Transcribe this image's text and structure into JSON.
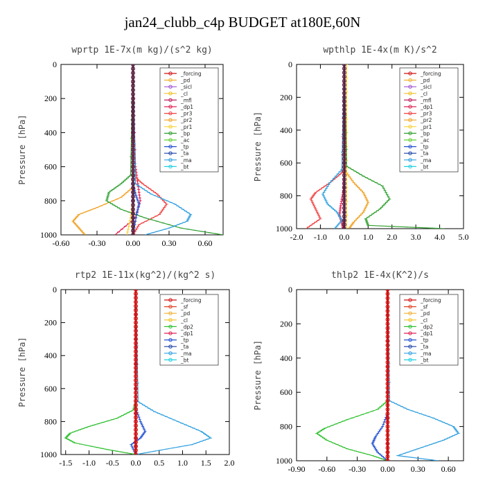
{
  "title": "jan24_clubb_c4p  BUDGET at180E,60N",
  "colors": {
    "forcing": "#d11111",
    "sf": "#e04020",
    "pd": "#f0b030",
    "sicl": "#a050d0",
    "cl": "#f0c020",
    "mfl": "#c02060",
    "dp1": "#e02050",
    "dp2": "#30c030",
    "pr3": "#f04040",
    "pr2": "#f0a020",
    "pr1": "#f8d030",
    "bp": "#30a030",
    "ac": "#60d030",
    "tp": "#2050d0",
    "ta": "#1a3fa8",
    "ma": "#30a0e0",
    "bt": "#20d0e0"
  },
  "chart_data": [
    {
      "type": "line",
      "title": "wprtp   1E-7x(m kg)/(s^2 kg)",
      "ylabel": "Pressure [hPa]",
      "ylim": [
        1000,
        0
      ],
      "xlim": [
        -0.6,
        0.75
      ],
      "xticks": [
        "-0.60",
        "-0.30",
        "0.00",
        "0.30",
        "0.60"
      ],
      "xtick_values": [
        -0.6,
        -0.3,
        0.0,
        0.3,
        0.6
      ],
      "yticks": [
        "0",
        "200",
        "400",
        "600",
        "800",
        "1000"
      ],
      "legend": [
        "_forcing",
        "_pd",
        "_sicl",
        "_cl",
        "_mfl",
        "_dp1",
        "_pr3",
        "_pr2",
        "_pr1",
        "_bp",
        "_ac",
        "_tp",
        "_ta",
        "_ma",
        "_bt"
      ],
      "series": [
        {
          "name": "_forcing",
          "color": "forcing",
          "x": [
            0,
            0
          ],
          "y": [
            0,
            1000
          ]
        },
        {
          "name": "_pd",
          "color": "pd",
          "x": [
            0,
            0
          ],
          "y": [
            0,
            1000
          ]
        },
        {
          "name": "_sicl",
          "color": "sicl",
          "x": [
            0,
            0
          ],
          "y": [
            0,
            1000
          ]
        },
        {
          "name": "_cl",
          "color": "cl",
          "x": [
            0,
            0
          ],
          "y": [
            0,
            1000
          ]
        },
        {
          "name": "_mfl",
          "color": "mfl",
          "x": [
            0,
            0
          ],
          "y": [
            0,
            1000
          ]
        },
        {
          "name": "_dp1",
          "color": "dp1",
          "x": [
            0,
            0.02,
            0.04,
            0.06,
            0.02,
            -0.15
          ],
          "y": [
            0,
            600,
            700,
            800,
            900,
            1000
          ]
        },
        {
          "name": "_pr3",
          "color": "pr3",
          "x": [
            0,
            0.0,
            0.08,
            0.2,
            0.28,
            0.22,
            0.05,
            0.0
          ],
          "y": [
            0,
            650,
            700,
            760,
            820,
            880,
            940,
            1000
          ]
        },
        {
          "name": "_pr2",
          "color": "pr2",
          "x": [
            0,
            0.0,
            -0.1,
            -0.3,
            -0.45,
            -0.5,
            -0.45,
            -0.4
          ],
          "y": [
            0,
            720,
            780,
            840,
            880,
            920,
            960,
            1000
          ]
        },
        {
          "name": "_pr1",
          "color": "pr1",
          "x": [
            0,
            0,
            -0.02,
            -0.05
          ],
          "y": [
            0,
            800,
            900,
            1000
          ]
        },
        {
          "name": "_bp",
          "color": "bp",
          "x": [
            0,
            -0.02,
            -0.1,
            -0.2,
            -0.22,
            -0.1,
            0.1,
            0.4,
            0.75
          ],
          "y": [
            0,
            650,
            700,
            750,
            800,
            850,
            900,
            960,
            1000
          ]
        },
        {
          "name": "_ac",
          "color": "ac",
          "x": [
            0,
            0,
            0.0
          ],
          "y": [
            0,
            900,
            1000
          ]
        },
        {
          "name": "_tp",
          "color": "tp",
          "x": [
            0,
            0.0,
            0.02,
            0.05,
            0.03,
            0.0
          ],
          "y": [
            0,
            700,
            760,
            820,
            880,
            1000
          ]
        },
        {
          "name": "_ta",
          "color": "ta",
          "x": [
            0,
            0,
            0.0
          ],
          "y": [
            0,
            800,
            1000
          ]
        },
        {
          "name": "_ma",
          "color": "ma",
          "x": [
            0,
            0.02,
            0.15,
            0.35,
            0.48,
            0.45,
            0.3,
            0.1
          ],
          "y": [
            0,
            700,
            760,
            820,
            880,
            920,
            960,
            1000
          ]
        },
        {
          "name": "_bt",
          "color": "bt",
          "x": [
            0,
            0
          ],
          "y": [
            0,
            1000
          ]
        }
      ]
    },
    {
      "type": "line",
      "title": "wpthlp   1E-4x(m K)/s^2",
      "ylabel": "Pressure [hPa]",
      "ylim": [
        1000,
        0
      ],
      "xlim": [
        -2.0,
        5.0
      ],
      "xticks": [
        "-2.0",
        "-1.0",
        "0.0",
        "1.0",
        "2.0",
        "3.0",
        "4.0",
        "5.0"
      ],
      "xtick_values": [
        -2,
        -1,
        0,
        1,
        2,
        3,
        4,
        5
      ],
      "yticks": [
        "0",
        "200",
        "400",
        "600",
        "800",
        "1000"
      ],
      "legend": [
        "_forcing",
        "_pd",
        "_sicl",
        "_cl",
        "_mfl",
        "_dp1",
        "_pr3",
        "_pr2",
        "_pr1",
        "_bp",
        "_ac",
        "_tp",
        "_ta",
        "_ma",
        "_bt"
      ],
      "series": [
        {
          "name": "_forcing",
          "color": "forcing",
          "x": [
            0,
            0
          ],
          "y": [
            0,
            1000
          ]
        },
        {
          "name": "_pd",
          "color": "pd",
          "x": [
            0,
            0
          ],
          "y": [
            0,
            1000
          ]
        },
        {
          "name": "_sicl",
          "color": "sicl",
          "x": [
            0,
            0
          ],
          "y": [
            0,
            1000
          ]
        },
        {
          "name": "_cl",
          "color": "cl",
          "x": [
            0,
            0
          ],
          "y": [
            0,
            1000
          ]
        },
        {
          "name": "_mfl",
          "color": "mfl",
          "x": [
            0,
            0
          ],
          "y": [
            0,
            1000
          ]
        },
        {
          "name": "_dp1",
          "color": "dp1",
          "x": [
            0,
            0,
            -0.05,
            -0.15,
            -0.2,
            -0.1,
            -0.05
          ],
          "y": [
            0,
            700,
            780,
            860,
            920,
            960,
            1000
          ]
        },
        {
          "name": "_pr3",
          "color": "pr3",
          "x": [
            0,
            -0.1,
            -0.6,
            -1.2,
            -1.4,
            -1.2,
            -1.0,
            -1.6
          ],
          "y": [
            0,
            660,
            720,
            780,
            820,
            880,
            940,
            1000
          ]
        },
        {
          "name": "_pr2",
          "color": "pr2",
          "x": [
            0,
            0.05,
            0.4,
            0.8,
            1.0,
            0.8,
            0.4,
            0.2
          ],
          "y": [
            0,
            650,
            720,
            780,
            840,
            900,
            960,
            1000
          ]
        },
        {
          "name": "_pr1",
          "color": "pr1",
          "x": [
            0.1,
            0.1,
            0.1
          ],
          "y": [
            0,
            500,
            1000
          ]
        },
        {
          "name": "_bp",
          "color": "bp",
          "x": [
            0,
            0.1,
            0.8,
            1.6,
            1.9,
            1.5,
            0.9,
            1.0,
            4.2
          ],
          "y": [
            0,
            620,
            680,
            740,
            820,
            880,
            940,
            980,
            1000
          ]
        },
        {
          "name": "_ac",
          "color": "ac",
          "x": [
            0,
            0,
            0.0
          ],
          "y": [
            0,
            900,
            1000
          ]
        },
        {
          "name": "_tp",
          "color": "tp",
          "x": [
            0,
            0,
            0.0
          ],
          "y": [
            0,
            900,
            1000
          ]
        },
        {
          "name": "_ta",
          "color": "ta",
          "x": [
            0,
            0,
            0.0
          ],
          "y": [
            0,
            900,
            1000
          ]
        },
        {
          "name": "_ma",
          "color": "ma",
          "x": [
            0,
            -0.1,
            -0.6,
            -0.9,
            -0.7,
            -0.3,
            -0.1,
            -0.4
          ],
          "y": [
            0,
            640,
            720,
            790,
            850,
            900,
            950,
            1000
          ]
        },
        {
          "name": "_bt",
          "color": "bt",
          "x": [
            0,
            0
          ],
          "y": [
            0,
            1000
          ]
        }
      ]
    },
    {
      "type": "line",
      "title": "rtp2   1E-11x(kg^2)/(kg^2 s)",
      "ylabel": "Pressure [hPa]",
      "ylim": [
        1000,
        0
      ],
      "xlim": [
        -1.6,
        2.0
      ],
      "xticks": [
        "-1.5",
        "-1.0",
        "-0.5",
        "0.0",
        "0.5",
        "1.0",
        "1.5",
        "2.0"
      ],
      "xtick_values": [
        -1.5,
        -1.0,
        -0.5,
        0.0,
        0.5,
        1.0,
        1.5,
        2.0
      ],
      "yticks": [
        "0",
        "200",
        "400",
        "600",
        "800",
        "1000"
      ],
      "legend": [
        "_forcing",
        "_sf",
        "_pd",
        "_cl",
        "_dp2",
        "_dp1",
        "_tp",
        "_ta",
        "_ma",
        "_bt"
      ],
      "series": [
        {
          "name": "_forcing",
          "color": "forcing",
          "x": [
            0,
            0
          ],
          "y": [
            0,
            1000
          ]
        },
        {
          "name": "_sf",
          "color": "sf",
          "x": [
            0,
            0
          ],
          "y": [
            0,
            1000
          ]
        },
        {
          "name": "_pd",
          "color": "pd",
          "x": [
            0,
            0
          ],
          "y": [
            0,
            1000
          ]
        },
        {
          "name": "_cl",
          "color": "cl",
          "x": [
            0,
            0
          ],
          "y": [
            0,
            1000
          ]
        },
        {
          "name": "_dp2",
          "color": "dp2",
          "x": [
            0,
            0,
            -0.05,
            -0.4,
            -1.0,
            -1.4,
            -1.5,
            -1.3,
            -0.6,
            0.0
          ],
          "y": [
            0,
            680,
            730,
            780,
            830,
            870,
            900,
            930,
            970,
            1000
          ]
        },
        {
          "name": "_dp1",
          "color": "dp1",
          "x": [
            0,
            0,
            0.0
          ],
          "y": [
            0,
            900,
            1000
          ]
        },
        {
          "name": "_tp",
          "color": "tp",
          "x": [
            0,
            0,
            0.1,
            0.2,
            0.1,
            -0.1,
            0.0
          ],
          "y": [
            0,
            720,
            800,
            860,
            900,
            940,
            1000
          ]
        },
        {
          "name": "_ta",
          "color": "ta",
          "x": [
            0,
            0,
            0.0
          ],
          "y": [
            0,
            900,
            1000
          ]
        },
        {
          "name": "_ma",
          "color": "ma",
          "x": [
            0,
            0.05,
            0.4,
            0.9,
            1.4,
            1.6,
            1.2,
            0.4,
            0.0
          ],
          "y": [
            0,
            680,
            740,
            800,
            860,
            900,
            940,
            980,
            1000
          ]
        },
        {
          "name": "_bt",
          "color": "bt",
          "x": [
            0,
            0
          ],
          "y": [
            0,
            1000
          ]
        }
      ]
    },
    {
      "type": "line",
      "title": "thlp2   1E-4x(K^2)/s",
      "ylabel": "Pressure [hPa]",
      "ylim": [
        1000,
        0
      ],
      "xlim": [
        -0.9,
        0.75
      ],
      "xticks": [
        "-0.90",
        "-0.60",
        "-0.30",
        "0.00",
        "0.30",
        "0.60"
      ],
      "xtick_values": [
        -0.9,
        -0.6,
        -0.3,
        0.0,
        0.3,
        0.6
      ],
      "yticks": [
        "0",
        "200",
        "400",
        "600",
        "800",
        "1000"
      ],
      "legend": [
        "_forcing",
        "_sf",
        "_pd",
        "_cl",
        "_dp2",
        "_dp1",
        "_tp",
        "_ta",
        "_ma",
        "_bt"
      ],
      "series": [
        {
          "name": "_forcing",
          "color": "forcing",
          "x": [
            0,
            0
          ],
          "y": [
            0,
            1000
          ]
        },
        {
          "name": "_sf",
          "color": "sf",
          "x": [
            0,
            0
          ],
          "y": [
            0,
            1000
          ]
        },
        {
          "name": "_pd",
          "color": "pd",
          "x": [
            0,
            0
          ],
          "y": [
            0,
            1000
          ]
        },
        {
          "name": "_cl",
          "color": "cl",
          "x": [
            0,
            0
          ],
          "y": [
            0,
            1000
          ]
        },
        {
          "name": "_dp2",
          "color": "dp2",
          "x": [
            0,
            0,
            -0.1,
            -0.4,
            -0.62,
            -0.7,
            -0.6,
            -0.4,
            -0.15,
            0.0
          ],
          "y": [
            0,
            650,
            700,
            760,
            810,
            840,
            880,
            930,
            970,
            1000
          ]
        },
        {
          "name": "_dp1",
          "color": "dp1",
          "x": [
            0,
            0,
            0.0
          ],
          "y": [
            0,
            900,
            1000
          ]
        },
        {
          "name": "_tp",
          "color": "tp",
          "x": [
            0,
            0,
            -0.05,
            -0.12,
            -0.15,
            -0.1,
            0.0
          ],
          "y": [
            0,
            720,
            800,
            860,
            900,
            950,
            1000
          ]
        },
        {
          "name": "_ta",
          "color": "ta",
          "x": [
            0,
            0,
            0.0
          ],
          "y": [
            0,
            900,
            1000
          ]
        },
        {
          "name": "_ma",
          "color": "ma",
          "x": [
            0,
            0.02,
            0.2,
            0.45,
            0.65,
            0.7,
            0.55,
            0.3,
            0.1,
            0.5
          ],
          "y": [
            0,
            650,
            700,
            750,
            800,
            840,
            880,
            930,
            970,
            1000
          ]
        },
        {
          "name": "_bt",
          "color": "bt",
          "x": [
            0,
            0
          ],
          "y": [
            0,
            1000
          ]
        }
      ]
    }
  ]
}
